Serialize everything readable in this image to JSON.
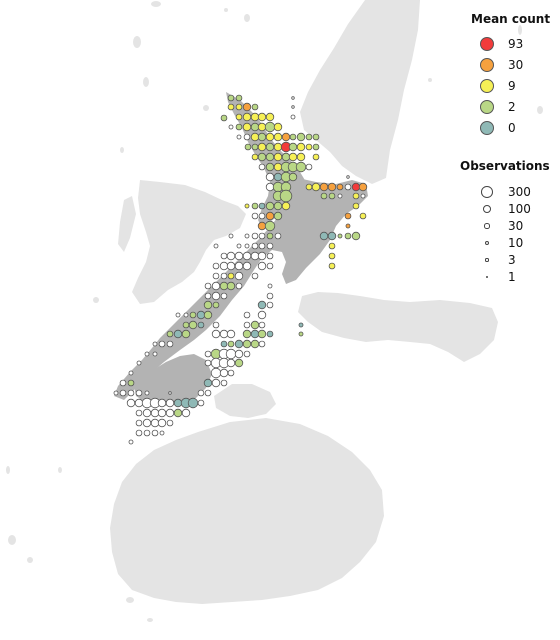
{
  "legend": {
    "mean_count": {
      "title": "Mean count",
      "items": [
        {
          "label": "93",
          "color": "#f23b3b"
        },
        {
          "label": "30",
          "color": "#f6a13f"
        },
        {
          "label": "9",
          "color": "#f6f056"
        },
        {
          "label": "2",
          "color": "#b9d786"
        },
        {
          "label": "0",
          "color": "#8fb9b6"
        }
      ]
    },
    "observations": {
      "title": "Observations",
      "items": [
        {
          "label": "300",
          "value": 300
        },
        {
          "label": "100",
          "value": 100
        },
        {
          "label": "30",
          "value": 30
        },
        {
          "label": "10",
          "value": 10
        },
        {
          "label": "3",
          "value": 3
        },
        {
          "label": "1",
          "value": 1
        }
      ]
    }
  },
  "colors": {
    "background_land": "#e4e4e4",
    "study_region": "#b3b3b3",
    "ocean": "#ffffff",
    "no_data_fill": "#ffffff",
    "marker_stroke": "#555555"
  }
}
